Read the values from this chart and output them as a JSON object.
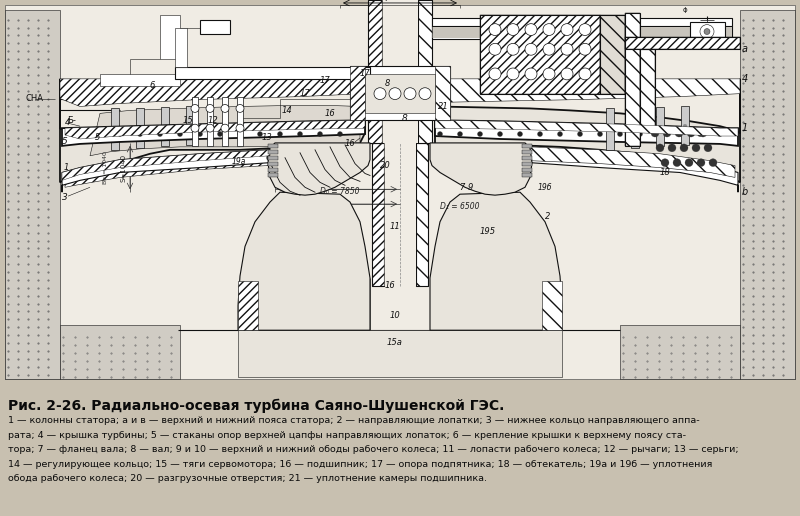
{
  "title": "Рис. 2-26. Радиально-осевая турбина Саяно-Шушенской ГЭС.",
  "caption_lines": [
    "1 — колонны статора; а и в — верхний и нижний пояса статора; 2 — направляющие лопатки; 3 — нижнее кольцо направляющего аппа-",
    "рата; 4 — крышка турбины; 5 — стаканы опор верхней цапфы направляющих лопаток; 6 — крепление крышки к верхнему поясу ста-",
    "тора; 7 — фланец вала; 8 — вал; 9 и 10 — верхний и нижний ободы рабочего колеса; 11 — лопасти рабочего колеса; 12 — рычаги; 13 — серьги;",
    "14 — регулирующее кольцо; 15 — тяги сервомотора; 16 — подшипник; 17 — опора подпятника; 18 — обтекатель; 19а и 19б — уплотнения",
    "обода рабочего колеса; 20 — разгрузочные отверстия; 21 — уплотнение камеры подшипника."
  ],
  "bg_color": "#c8c0b0",
  "drawing_bg": "#e8e4dc",
  "line_color": "#1a1208",
  "text_color": "#0a0a0a",
  "title_fontsize": 10.5,
  "caption_fontsize": 7.2,
  "fig_width": 8.0,
  "fig_height": 5.16
}
